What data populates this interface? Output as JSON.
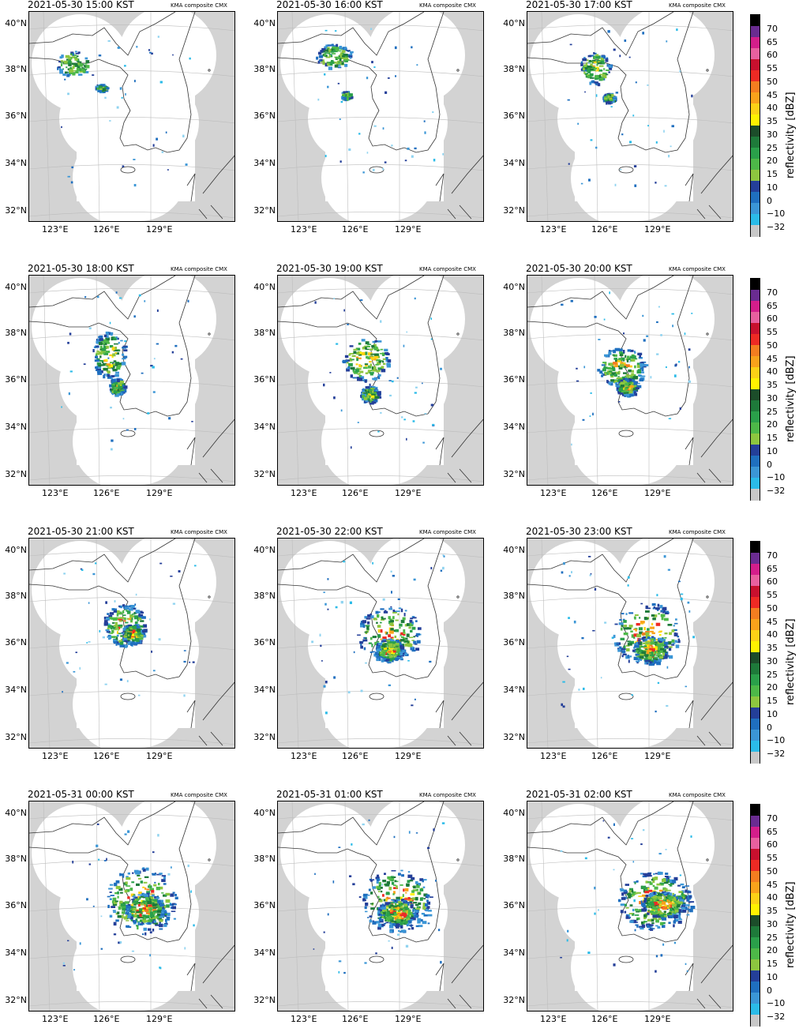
{
  "panels": [
    {
      "title": "2021-05-30 15:00 KST",
      "source": "KMA composite CMX",
      "stage": 0
    },
    {
      "title": "2021-05-30 16:00 KST",
      "source": "KMA composite CMX",
      "stage": 1
    },
    {
      "title": "2021-05-30 17:00 KST",
      "source": "KMA composite CMX",
      "stage": 2
    },
    {
      "title": "2021-05-30 18:00 KST",
      "source": "KMA composite CMX",
      "stage": 3
    },
    {
      "title": "2021-05-30 19:00 KST",
      "source": "KMA composite CMX",
      "stage": 4
    },
    {
      "title": "2021-05-30 20:00 KST",
      "source": "KMA composite CMX",
      "stage": 5
    },
    {
      "title": "2021-05-30 21:00 KST",
      "source": "KMA composite CMX",
      "stage": 6
    },
    {
      "title": "2021-05-30 22:00 KST",
      "source": "KMA composite CMX",
      "stage": 7
    },
    {
      "title": "2021-05-30 23:00 KST",
      "source": "KMA composite CMX",
      "stage": 8
    },
    {
      "title": "2021-05-31 00:00 KST",
      "source": "KMA composite CMX",
      "stage": 9
    },
    {
      "title": "2021-05-31 01:00 KST",
      "source": "KMA composite CMX",
      "stage": 10
    },
    {
      "title": "2021-05-31 02:00 KST",
      "source": "KMA composite CMX",
      "stage": 11
    }
  ],
  "lat_labels": [
    "40°N",
    "38°N",
    "36°N",
    "34°N",
    "32°N"
  ],
  "lon_labels": [
    "123°E",
    "126°E",
    "129°E"
  ],
  "colorbar": {
    "label": "reflectivity [dBZ]",
    "ticks": [
      "70",
      "65",
      "60",
      "55",
      "50",
      "45",
      "40",
      "35",
      "30",
      "25",
      "20",
      "15",
      "10",
      "0",
      "−10",
      "−32"
    ],
    "colors": [
      "#000000",
      "#6a2c91",
      "#d41e8b",
      "#e8609f",
      "#c8102e",
      "#ee2a24",
      "#f47d20",
      "#f9a21b",
      "#fcd116",
      "#fff200",
      "#1c4d2a",
      "#1e7a3a",
      "#2aa04a",
      "#4db848",
      "#8dc63f",
      "#243f99",
      "#1f6fbf",
      "#3b96d6",
      "#2bbbe8",
      "#c8c8c8"
    ]
  }
}
